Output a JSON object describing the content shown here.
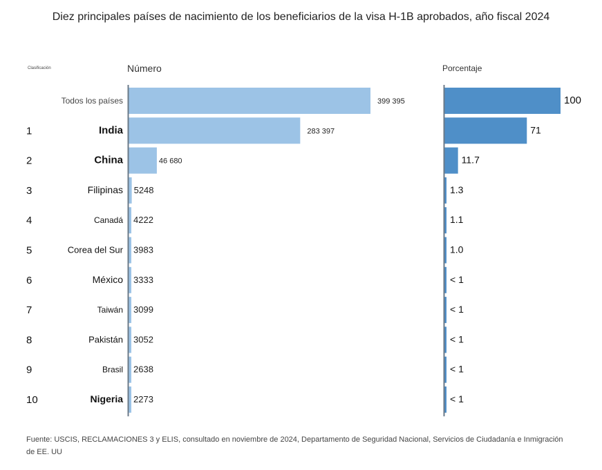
{
  "header": {
    "title": "Diez principales países de nacimiento de los beneficiarios de la visa H-1B aprobados, año fiscal 2024",
    "rank_label": "Clasificación",
    "number_label": "Número",
    "percent_label": "Porcentaje"
  },
  "chart_data": {
    "type": "bar",
    "orientation": "horizontal",
    "title": "Diez principales países de nacimiento de los beneficiarios de la visa H-1B aprobados, año fiscal 2024",
    "rows": [
      {
        "rank": "",
        "country": "Todos los países",
        "number": 399395,
        "number_label": "399 395",
        "percent": 100,
        "percent_label": "100"
      },
      {
        "rank": "1",
        "country": "India",
        "number": 283397,
        "number_label": "283 397",
        "percent": 71,
        "percent_label": "71"
      },
      {
        "rank": "2",
        "country": "China",
        "number": 46680,
        "number_label": "46 680",
        "percent": 11.7,
        "percent_label": "11.7"
      },
      {
        "rank": "3",
        "country": "Filipinas",
        "number": 5248,
        "number_label": "5248",
        "percent": 1.3,
        "percent_label": "1.3"
      },
      {
        "rank": "4",
        "country": "Canadá",
        "number": 4222,
        "number_label": "4222",
        "percent": 1.1,
        "percent_label": "1.1"
      },
      {
        "rank": "5",
        "country": "Corea del Sur",
        "number": 3983,
        "number_label": "3983",
        "percent": 1.0,
        "percent_label": "1.0"
      },
      {
        "rank": "6",
        "country": "México",
        "number": 3333,
        "number_label": "3333",
        "percent": 0.8,
        "percent_label": "< 1"
      },
      {
        "rank": "7",
        "country": "Taiwán",
        "number": 3099,
        "number_label": "3099",
        "percent": 0.8,
        "percent_label": "< 1"
      },
      {
        "rank": "8",
        "country": "Pakistán",
        "number": 3052,
        "number_label": "3052",
        "percent": 0.8,
        "percent_label": "< 1"
      },
      {
        "rank": "9",
        "country": "Brasil",
        "number": 2638,
        "number_label": "2638",
        "percent": 0.7,
        "percent_label": "< 1"
      },
      {
        "rank": "10",
        "country": "Nigeria",
        "number": 2273,
        "number_label": "2273",
        "percent": 0.6,
        "percent_label": "< 1"
      }
    ],
    "number_axis_max": 399395,
    "percent_axis_max": 100,
    "colors": {
      "number_bar": "#9cc3e6",
      "percent_bar": "#4f8fc8",
      "axis": "#6b7a88"
    },
    "grid": false,
    "legend": "none"
  },
  "footer": {
    "source": "Fuente: USCIS, RECLAMACIONES 3 y ELIS, consultado en noviembre de 2024, Departamento de Seguridad Nacional, Servicios de Ciudadanía e Inmigración de EE. UU"
  }
}
